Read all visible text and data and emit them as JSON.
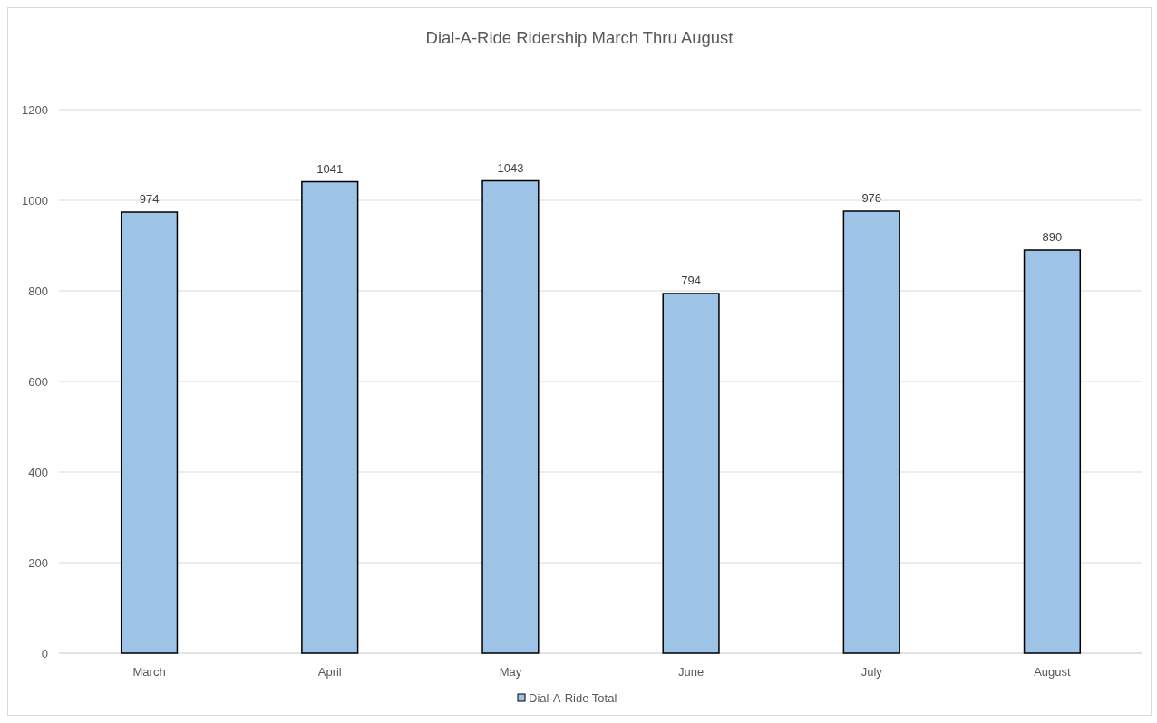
{
  "chart_data": {
    "type": "bar",
    "title": "Dial-A-Ride Ridership March Thru August",
    "categories": [
      "March",
      "April",
      "May",
      "June",
      "July",
      "August"
    ],
    "series": [
      {
        "name": "Dial-A-Ride Total",
        "color": "#9dc3e6",
        "values": [
          974,
          1041,
          1043,
          794,
          976,
          890
        ]
      }
    ],
    "ylim": [
      0,
      1200
    ],
    "yticks": [
      0,
      200,
      400,
      600,
      800,
      1000,
      1200
    ],
    "grid": "y",
    "legend": "bottom",
    "data_labels": true
  }
}
